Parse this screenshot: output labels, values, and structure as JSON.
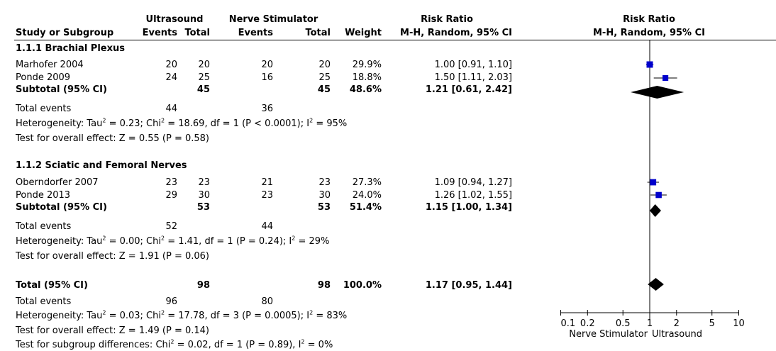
{
  "header": {
    "group1": "Ultrasound",
    "group2": "Nerve Stimulator",
    "rr_title": "Risk Ratio",
    "plot_title": "Risk Ratio",
    "study_col": "Study or Subgroup",
    "events1": "Events",
    "total1": "Total",
    "events2": "Events",
    "total2": "Total",
    "weight": "Weight",
    "method": "M-H, Random, 95% CI",
    "plot_method": "M-H, Random, 95% CI"
  },
  "subgroups": [
    {
      "title": "1.1.1 Brachial Plexus",
      "studies": [
        {
          "name": "Marhofer 2004",
          "e1": "20",
          "t1": "20",
          "e2": "20",
          "t2": "20",
          "weight": "29.9%",
          "ci": "1.00 [0.91, 1.10]"
        },
        {
          "name": "Ponde 2009",
          "e1": "24",
          "t1": "25",
          "e2": "16",
          "t2": "25",
          "weight": "18.8%",
          "ci": "1.50 [1.11, 2.03]"
        }
      ],
      "subtotal": {
        "label": "Subtotal (95% CI)",
        "t1": "45",
        "t2": "45",
        "weight": "48.6%",
        "ci": "1.21 [0.61, 2.42]"
      },
      "events": {
        "label": "Total events",
        "e1": "44",
        "e2": "36"
      },
      "het": {
        "a": "Heterogeneity: Tau",
        "b": " = 0.23; Chi",
        "c": " = 18.69, df = 1 (P < 0.0001); I",
        "d": " = 95%"
      },
      "overall": "Test for overall effect: Z = 0.55 (P = 0.58)"
    },
    {
      "title": "1.1.2 Sciatic and Femoral Nerves",
      "studies": [
        {
          "name": "Oberndorfer 2007",
          "e1": "23",
          "t1": "23",
          "e2": "21",
          "t2": "23",
          "weight": "27.3%",
          "ci": "1.09 [0.94, 1.27]"
        },
        {
          "name": "Ponde 2013",
          "e1": "29",
          "t1": "30",
          "e2": "23",
          "t2": "30",
          "weight": "24.0%",
          "ci": "1.26 [1.02, 1.55]"
        }
      ],
      "subtotal": {
        "label": "Subtotal (95% CI)",
        "t1": "53",
        "t2": "53",
        "weight": "51.4%",
        "ci": "1.15 [1.00, 1.34]"
      },
      "events": {
        "label": "Total events",
        "e1": "52",
        "e2": "44"
      },
      "het": {
        "a": "Heterogeneity: Tau",
        "b": " = 0.00; Chi",
        "c": " = 1.41, df = 1 (P = 0.24); I",
        "d": " = 29%"
      },
      "overall": "Test for overall effect: Z = 1.91 (P = 0.06)"
    }
  ],
  "total": {
    "label": "Total (95% CI)",
    "t1": "98",
    "t2": "98",
    "weight": "100.0%",
    "ci": "1.17 [0.95, 1.44]",
    "events": {
      "label": "Total events",
      "e1": "96",
      "e2": "80"
    },
    "het": {
      "a": "Heterogeneity: Tau",
      "b": " = 0.03; Chi",
      "c": " = 17.78, df = 3 (P = 0.0005); I",
      "d": " = 83%"
    },
    "overall": "Test for overall effect: Z = 1.49 (P = 0.14)",
    "subgroup_diff": {
      "a": "Test for subgroup differences: Chi",
      "b": " = 0.02, df = 1 (P = 0.89), I",
      "c": " = 0%"
    }
  },
  "sup2": "2",
  "axis": {
    "ticks": [
      "0.1",
      "0.2",
      "0.5",
      "1",
      "2",
      "5",
      "10"
    ],
    "left_label": "Nerve Stimulator",
    "right_label": "Ultrasound"
  },
  "chart_data": {
    "type": "forest",
    "scale": "log",
    "xlim": [
      0.1,
      10
    ],
    "reference_line": 1,
    "marker_color": "#0000cc",
    "diamond_color": "#000000",
    "studies": [
      {
        "name": "Marhofer 2004",
        "rr": 1.0,
        "lo": 0.91,
        "hi": 1.1,
        "weight": 29.9
      },
      {
        "name": "Ponde 2009",
        "rr": 1.5,
        "lo": 1.11,
        "hi": 2.03,
        "weight": 18.8
      },
      {
        "name": "Oberndorfer 2007",
        "rr": 1.09,
        "lo": 0.94,
        "hi": 1.27,
        "weight": 27.3
      },
      {
        "name": "Ponde 2013",
        "rr": 1.26,
        "lo": 1.02,
        "hi": 1.55,
        "weight": 24.0
      }
    ],
    "pooled": [
      {
        "name": "Subtotal 1.1.1",
        "rr": 1.21,
        "lo": 0.61,
        "hi": 2.42
      },
      {
        "name": "Subtotal 1.1.2",
        "rr": 1.15,
        "lo": 1.0,
        "hi": 1.34
      },
      {
        "name": "Total",
        "rr": 1.17,
        "lo": 0.95,
        "hi": 1.44
      }
    ]
  }
}
